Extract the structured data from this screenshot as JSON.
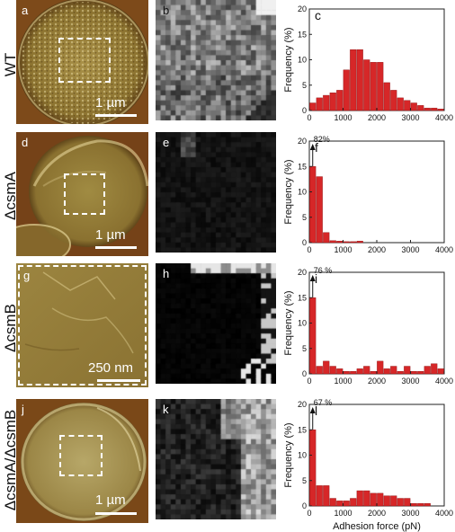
{
  "figure": {
    "rows": [
      {
        "row_label": "WT",
        "afm_letter": "a",
        "map_letter": "b",
        "hist_letter": "c",
        "scale_label": "1 µm",
        "peak_label": ""
      },
      {
        "row_label": "ΔcsmA",
        "afm_letter": "d",
        "map_letter": "e",
        "hist_letter": "f",
        "scale_label": "1 µm",
        "peak_label": "82%"
      },
      {
        "row_label": "ΔcsmB",
        "afm_letter": "g",
        "map_letter": "h",
        "hist_letter": "i",
        "scale_label": "250 nm",
        "peak_label": "76 %"
      },
      {
        "row_label": "ΔcsmA/ΔcsmB",
        "afm_letter": "j",
        "map_letter": "k",
        "hist_letter": "l",
        "scale_label": "1 µm",
        "peak_label": "67 %"
      }
    ],
    "colors": {
      "bar": "#d62728",
      "bar_edge": "#8b1111",
      "afm_light": "#c9b56a",
      "afm_dark": "#5a3a10"
    }
  },
  "chart_data": [
    {
      "type": "bar",
      "ylabel": "Frequency (%)",
      "xlabel": "",
      "xlim": [
        0,
        4000
      ],
      "ylim": [
        0,
        20
      ],
      "xticks": [
        0,
        1000,
        2000,
        3000,
        4000
      ],
      "yticks": [
        0,
        5,
        10,
        15,
        20
      ],
      "bin_width": 200,
      "x": [
        100,
        300,
        500,
        700,
        900,
        1100,
        1300,
        1500,
        1700,
        1900,
        2100,
        2300,
        2500,
        2700,
        2900,
        3100,
        3300,
        3500,
        3700,
        3900
      ],
      "values": [
        1.5,
        2.5,
        3,
        3.5,
        4,
        8,
        12,
        12,
        10,
        9.5,
        9.5,
        5.5,
        4,
        2.5,
        2,
        1.5,
        1,
        0.5,
        0.5,
        0.3
      ]
    },
    {
      "type": "bar",
      "ylabel": "Frequency (%)",
      "xlabel": "",
      "xlim": [
        0,
        4000
      ],
      "ylim": [
        0,
        20
      ],
      "xticks": [
        0,
        1000,
        2000,
        3000,
        4000
      ],
      "yticks": [
        0,
        5,
        10,
        15,
        20
      ],
      "bin_width": 200,
      "x": [
        100,
        300,
        500,
        700,
        900,
        1100,
        1300,
        1500
      ],
      "values": [
        15,
        13,
        2,
        0.4,
        0.3,
        0.2,
        0.2,
        0.3
      ]
    },
    {
      "type": "bar",
      "ylabel": "Frequency (%)",
      "xlabel": "",
      "xlim": [
        0,
        4000
      ],
      "ylim": [
        0,
        20
      ],
      "xticks": [
        0,
        1000,
        2000,
        3000,
        4000
      ],
      "yticks": [
        0,
        5,
        10,
        15,
        20
      ],
      "bin_width": 200,
      "x": [
        100,
        300,
        500,
        700,
        900,
        1100,
        1300,
        1500,
        1700,
        1900,
        2100,
        2300,
        2500,
        2700,
        2900,
        3100,
        3300,
        3500,
        3700,
        3900
      ],
      "values": [
        15,
        1.5,
        2.5,
        1.5,
        1,
        0.5,
        0.5,
        1,
        1.5,
        0.5,
        2.5,
        1,
        1.5,
        0.5,
        1.5,
        0.5,
        0.5,
        1.5,
        2,
        1
      ]
    },
    {
      "type": "bar",
      "ylabel": "Frequency (%)",
      "xlabel": "Adhesion force (pN)",
      "xlim": [
        0,
        4000
      ],
      "ylim": [
        0,
        20
      ],
      "xticks": [
        0,
        1000,
        2000,
        3000,
        4000
      ],
      "yticks": [
        0,
        5,
        10,
        15,
        20
      ],
      "bin_width": 200,
      "x": [
        100,
        300,
        500,
        700,
        900,
        1100,
        1300,
        1500,
        1700,
        1900,
        2100,
        2300,
        2500,
        2700,
        2900,
        3100,
        3300,
        3500
      ],
      "values": [
        15,
        4,
        4,
        1.5,
        1,
        1,
        1.5,
        3,
        3,
        2.5,
        2.5,
        2,
        2,
        1.5,
        1.5,
        0.5,
        0.5,
        0.5
      ]
    }
  ]
}
